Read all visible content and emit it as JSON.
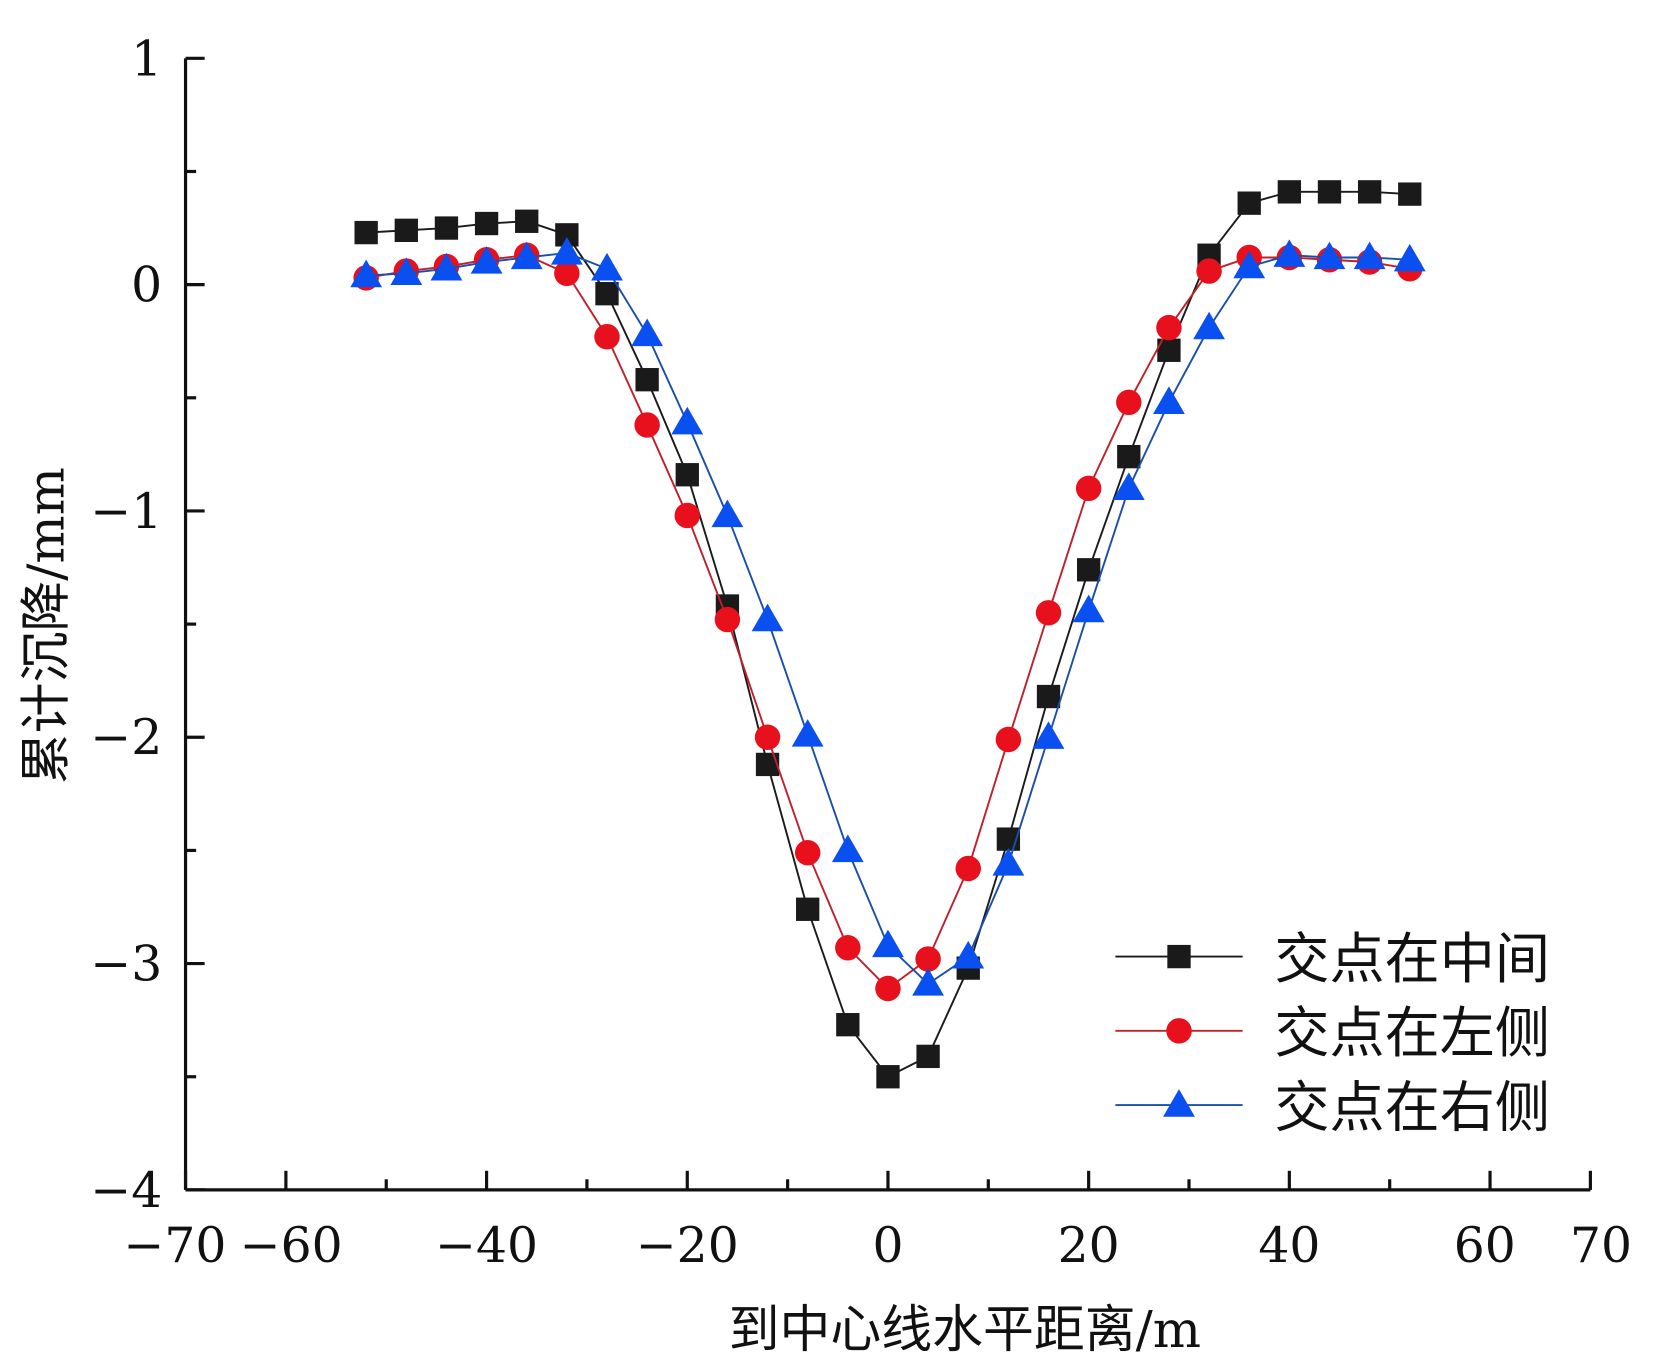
{
  "chart_data": {
    "type": "line",
    "title": "",
    "xlabel": "到中心线水平距离/m",
    "ylabel": "累计沉降/mm",
    "xlim": [
      -70,
      70
    ],
    "ylim": [
      -4,
      1
    ],
    "xticks": [
      -70,
      -60,
      -40,
      -20,
      0,
      20,
      40,
      60,
      70
    ],
    "xtick_labels": [
      "−70",
      "−60",
      "−40",
      "−20",
      "0",
      "20",
      "40",
      "60",
      "70"
    ],
    "yticks": [
      1,
      0,
      -1,
      -2,
      -3,
      -4
    ],
    "ytick_labels": [
      "1",
      "0",
      "−1",
      "−2",
      "−3",
      "−4"
    ],
    "grid": false,
    "legend_position": "bottom-right",
    "x": [
      -52,
      -48,
      -44,
      -40,
      -36,
      -32,
      -28,
      -24,
      -20,
      -16,
      -12,
      -8,
      -4,
      0,
      4,
      8,
      12,
      16,
      20,
      24,
      28,
      32,
      36,
      40,
      44,
      48,
      52
    ],
    "series": [
      {
        "name": "交点在中间",
        "color": "#1a1a1a",
        "marker": "square",
        "values": [
          0.23,
          0.24,
          0.25,
          0.27,
          0.28,
          0.22,
          -0.04,
          -0.42,
          -0.84,
          -1.42,
          -2.12,
          -2.76,
          -3.27,
          -3.5,
          -3.41,
          -3.02,
          -2.45,
          -1.82,
          -1.26,
          -0.76,
          -0.29,
          0.13,
          0.36,
          0.41,
          0.41,
          0.41,
          0.4
        ]
      },
      {
        "name": "交点在左侧",
        "color": "#e8101c",
        "line_color": "#c0202a",
        "marker": "circle",
        "values": [
          0.03,
          0.06,
          0.08,
          0.11,
          0.13,
          0.05,
          -0.23,
          -0.62,
          -1.02,
          -1.48,
          -2.0,
          -2.51,
          -2.93,
          -3.11,
          -2.98,
          -2.58,
          -2.01,
          -1.45,
          -0.9,
          -0.52,
          -0.19,
          0.06,
          0.12,
          0.12,
          0.11,
          0.1,
          0.07
        ]
      },
      {
        "name": "交点在右侧",
        "color": "#0a4ff0",
        "line_color": "#1a4fa8",
        "marker": "triangle",
        "values": [
          0.04,
          0.05,
          0.07,
          0.1,
          0.12,
          0.14,
          0.07,
          -0.22,
          -0.61,
          -1.02,
          -1.48,
          -1.99,
          -2.5,
          -2.92,
          -3.09,
          -2.97,
          -2.56,
          -2.0,
          -1.44,
          -0.9,
          -0.52,
          -0.19,
          0.08,
          0.13,
          0.12,
          0.12,
          0.11
        ]
      }
    ]
  }
}
